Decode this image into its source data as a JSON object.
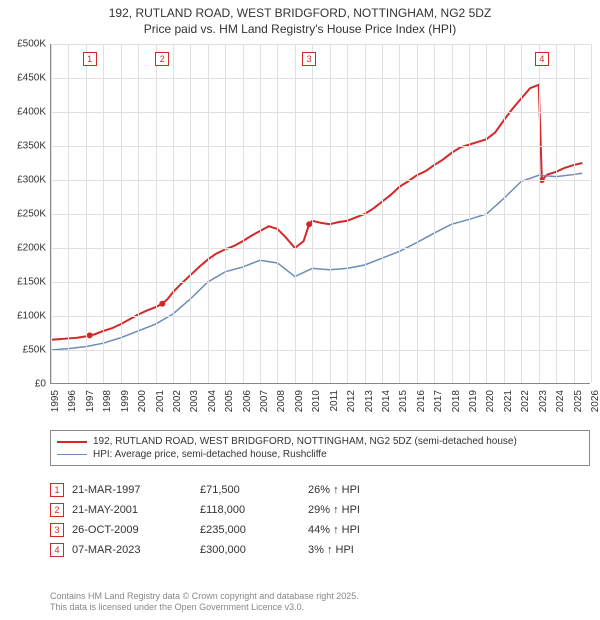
{
  "title_line1": "192, RUTLAND ROAD, WEST BRIDGFORD, NOTTINGHAM, NG2 5DZ",
  "title_line2": "Price paid vs. HM Land Registry's House Price Index (HPI)",
  "chart": {
    "type": "line",
    "x_domain": [
      1995,
      2026
    ],
    "y_domain": [
      0,
      500000
    ],
    "y_ticks": [
      0,
      50000,
      100000,
      150000,
      200000,
      250000,
      300000,
      350000,
      400000,
      450000,
      500000
    ],
    "y_tick_labels": [
      "£0",
      "£50K",
      "£100K",
      "£150K",
      "£200K",
      "£250K",
      "£300K",
      "£350K",
      "£400K",
      "£450K",
      "£500K"
    ],
    "x_ticks": [
      1995,
      1996,
      1997,
      1998,
      1999,
      2000,
      2001,
      2002,
      2003,
      2004,
      2005,
      2006,
      2007,
      2008,
      2009,
      2010,
      2011,
      2012,
      2013,
      2014,
      2015,
      2016,
      2017,
      2018,
      2019,
      2020,
      2021,
      2022,
      2023,
      2024,
      2025,
      2026
    ],
    "grid_color": "#e0e0e0",
    "background_color": "#ffffff",
    "series": [
      {
        "name": "price_paid",
        "color": "#d62728",
        "line_width": 2,
        "data": [
          [
            1995.0,
            65000
          ],
          [
            1995.5,
            66000
          ],
          [
            1996.0,
            67000
          ],
          [
            1996.5,
            68000
          ],
          [
            1997.0,
            70000
          ],
          [
            1997.22,
            71500
          ],
          [
            1997.5,
            73000
          ],
          [
            1998.0,
            78000
          ],
          [
            1998.5,
            82000
          ],
          [
            1999.0,
            88000
          ],
          [
            1999.5,
            95000
          ],
          [
            2000.0,
            102000
          ],
          [
            2000.5,
            108000
          ],
          [
            2001.0,
            113000
          ],
          [
            2001.39,
            118000
          ],
          [
            2001.7,
            125000
          ],
          [
            2002.0,
            135000
          ],
          [
            2002.5,
            148000
          ],
          [
            2003.0,
            160000
          ],
          [
            2003.5,
            172000
          ],
          [
            2004.0,
            183000
          ],
          [
            2004.5,
            192000
          ],
          [
            2005.0,
            198000
          ],
          [
            2005.5,
            203000
          ],
          [
            2006.0,
            210000
          ],
          [
            2006.5,
            218000
          ],
          [
            2007.0,
            225000
          ],
          [
            2007.5,
            232000
          ],
          [
            2008.0,
            228000
          ],
          [
            2008.5,
            215000
          ],
          [
            2009.0,
            200000
          ],
          [
            2009.5,
            210000
          ],
          [
            2009.82,
            235000
          ],
          [
            2010.0,
            240000
          ],
          [
            2010.5,
            237000
          ],
          [
            2011.0,
            235000
          ],
          [
            2011.5,
            238000
          ],
          [
            2012.0,
            240000
          ],
          [
            2012.5,
            245000
          ],
          [
            2013.0,
            250000
          ],
          [
            2013.5,
            258000
          ],
          [
            2014.0,
            268000
          ],
          [
            2014.5,
            278000
          ],
          [
            2015.0,
            290000
          ],
          [
            2015.5,
            298000
          ],
          [
            2016.0,
            307000
          ],
          [
            2016.5,
            313000
          ],
          [
            2017.0,
            322000
          ],
          [
            2017.5,
            330000
          ],
          [
            2018.0,
            340000
          ],
          [
            2018.5,
            348000
          ],
          [
            2019.0,
            352000
          ],
          [
            2019.5,
            356000
          ],
          [
            2020.0,
            360000
          ],
          [
            2020.5,
            370000
          ],
          [
            2021.0,
            388000
          ],
          [
            2021.5,
            405000
          ],
          [
            2022.0,
            420000
          ],
          [
            2022.5,
            435000
          ],
          [
            2023.0,
            440000
          ],
          [
            2023.18,
            300000
          ],
          [
            2023.5,
            308000
          ],
          [
            2024.0,
            312000
          ],
          [
            2024.5,
            318000
          ],
          [
            2025.0,
            322000
          ],
          [
            2025.5,
            325000
          ]
        ]
      },
      {
        "name": "hpi",
        "color": "#6b8db8",
        "line_width": 1.5,
        "data": [
          [
            1995.0,
            50000
          ],
          [
            1996.0,
            52000
          ],
          [
            1997.0,
            55000
          ],
          [
            1998.0,
            60000
          ],
          [
            1999.0,
            68000
          ],
          [
            2000.0,
            78000
          ],
          [
            2001.0,
            88000
          ],
          [
            2002.0,
            103000
          ],
          [
            2003.0,
            125000
          ],
          [
            2004.0,
            150000
          ],
          [
            2005.0,
            165000
          ],
          [
            2006.0,
            172000
          ],
          [
            2007.0,
            182000
          ],
          [
            2008.0,
            178000
          ],
          [
            2009.0,
            158000
          ],
          [
            2010.0,
            170000
          ],
          [
            2011.0,
            168000
          ],
          [
            2012.0,
            170000
          ],
          [
            2013.0,
            175000
          ],
          [
            2014.0,
            185000
          ],
          [
            2015.0,
            195000
          ],
          [
            2016.0,
            208000
          ],
          [
            2017.0,
            222000
          ],
          [
            2018.0,
            235000
          ],
          [
            2019.0,
            242000
          ],
          [
            2020.0,
            250000
          ],
          [
            2021.0,
            273000
          ],
          [
            2022.0,
            298000
          ],
          [
            2023.0,
            307000
          ],
          [
            2024.0,
            305000
          ],
          [
            2025.0,
            308000
          ],
          [
            2025.5,
            310000
          ]
        ]
      }
    ],
    "markers": [
      {
        "n": "1",
        "x": 1997.22,
        "color": "#d62728"
      },
      {
        "n": "2",
        "x": 2001.39,
        "color": "#d62728"
      },
      {
        "n": "3",
        "x": 2009.82,
        "color": "#d62728"
      },
      {
        "n": "4",
        "x": 2023.18,
        "color": "#d62728"
      }
    ]
  },
  "legend": {
    "items": [
      {
        "color": "#d62728",
        "width": 2,
        "label": "192, RUTLAND ROAD, WEST BRIDGFORD, NOTTINGHAM, NG2 5DZ (semi-detached house)"
      },
      {
        "color": "#6b8db8",
        "width": 1.5,
        "label": "HPI: Average price, semi-detached house, Rushcliffe"
      }
    ]
  },
  "events": [
    {
      "n": "1",
      "date": "21-MAR-1997",
      "price": "£71,500",
      "delta": "26% ↑ HPI",
      "color": "#d62728"
    },
    {
      "n": "2",
      "date": "21-MAY-2001",
      "price": "£118,000",
      "delta": "29% ↑ HPI",
      "color": "#d62728"
    },
    {
      "n": "3",
      "date": "26-OCT-2009",
      "price": "£235,000",
      "delta": "44% ↑ HPI",
      "color": "#d62728"
    },
    {
      "n": "4",
      "date": "07-MAR-2023",
      "price": "£300,000",
      "delta": "3% ↑ HPI",
      "color": "#d62728"
    }
  ],
  "footer_line1": "Contains HM Land Registry data © Crown copyright and database right 2025.",
  "footer_line2": "This data is licensed under the Open Government Licence v3.0."
}
